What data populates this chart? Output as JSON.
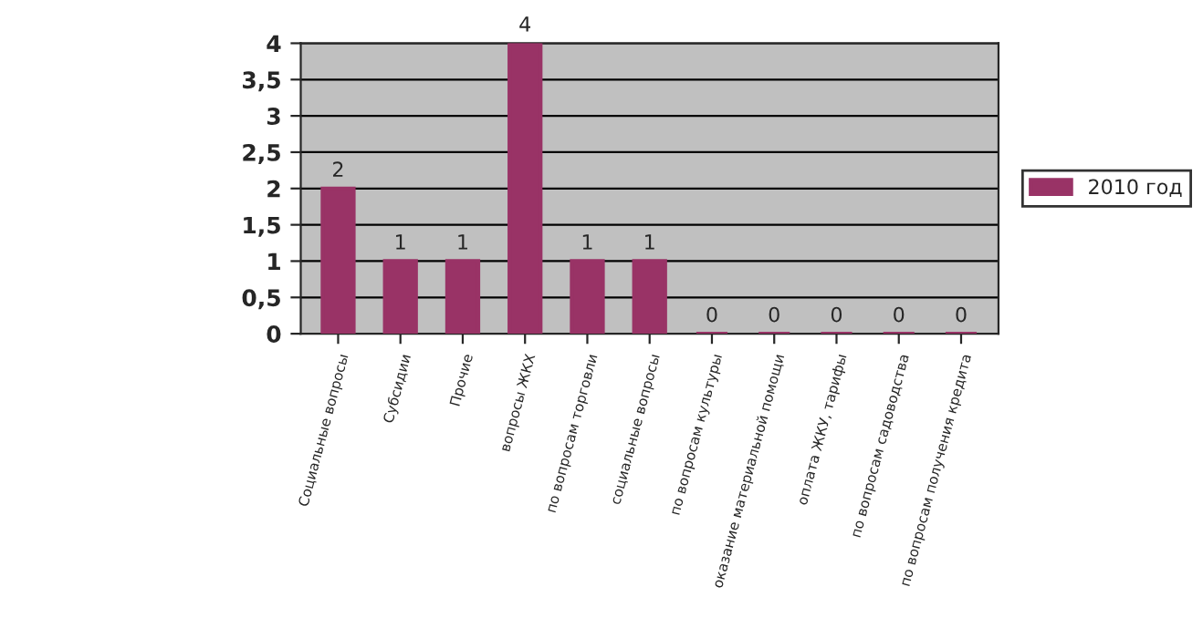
{
  "chart_data": {
    "type": "bar",
    "categories": [
      "Социальные вопросы",
      "Субсидии",
      "Прочие",
      "вопросы ЖКХ",
      "по вопросам торговли",
      "социальные вопросы",
      "по вопросам культуры",
      "оказание материальной помощи",
      "оплата ЖКУ, тарифы",
      "по вопросам садоводства",
      "по вопросам получения кредита"
    ],
    "series": [
      {
        "name": "2010 год",
        "color": "#993366",
        "values": [
          2,
          1,
          1,
          4,
          1,
          1,
          0,
          0,
          0,
          0,
          0
        ]
      }
    ],
    "ylim": [
      0,
      4
    ],
    "yticks": [
      0,
      {
        "value": 0.5,
        "label": "0,5"
      },
      1,
      {
        "value": 1.5,
        "label": "1,5"
      },
      2,
      {
        "value": 2.5,
        "label": "2,5"
      },
      3,
      {
        "value": 3.5,
        "label": "3,5"
      },
      4
    ],
    "grid": "y",
    "legend": "right",
    "data_labels": true
  }
}
